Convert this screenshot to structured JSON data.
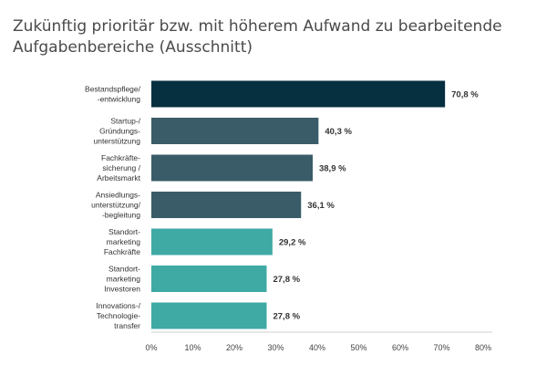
{
  "chart_data": {
    "type": "bar",
    "orientation": "horizontal",
    "title": "Zukünftig prioritär bzw. mit höherem Aufwand zu bearbeitende Aufgabenbereiche (Ausschnitt)",
    "categories": [
      "Bestandspflege/\n-entwicklung",
      "Startup-/\nGründungs-\nunterstützung",
      "Fachkräfte-\nsicherung /\nArbeitsmarkt",
      "Ansiedlungs-\nunterstützung/\n-begleitung",
      "Standort-\nmarketing\nFachkräfte",
      "Standort-\nmarketing\nInvestoren",
      "Innovations-/\nTechnologie-\ntransfer"
    ],
    "values": [
      70.8,
      40.3,
      38.9,
      36.1,
      29.2,
      27.8,
      27.8
    ],
    "value_labels": [
      "70,8 %",
      "40,3 %",
      "38,9 %",
      "36,1 %",
      "29,2 %",
      "27,8 %",
      "27,8 %"
    ],
    "bar_colors": [
      "#062f3f",
      "#3a5c68",
      "#3a5c68",
      "#3a5c68",
      "#3fa9a4",
      "#3fa9a4",
      "#3fa9a4"
    ],
    "xlim": [
      0,
      80
    ],
    "ticks": [
      0,
      10,
      20,
      30,
      40,
      50,
      60,
      70,
      80
    ],
    "tick_labels": [
      "0%",
      "10%",
      "20%",
      "30%",
      "40%",
      "50%",
      "60%",
      "70%",
      "80%"
    ],
    "xlabel": "",
    "ylabel": "",
    "grid": false
  },
  "colors": {
    "title": "#4a4a4a",
    "axis": "#cfcfcf",
    "text": "#333333"
  }
}
